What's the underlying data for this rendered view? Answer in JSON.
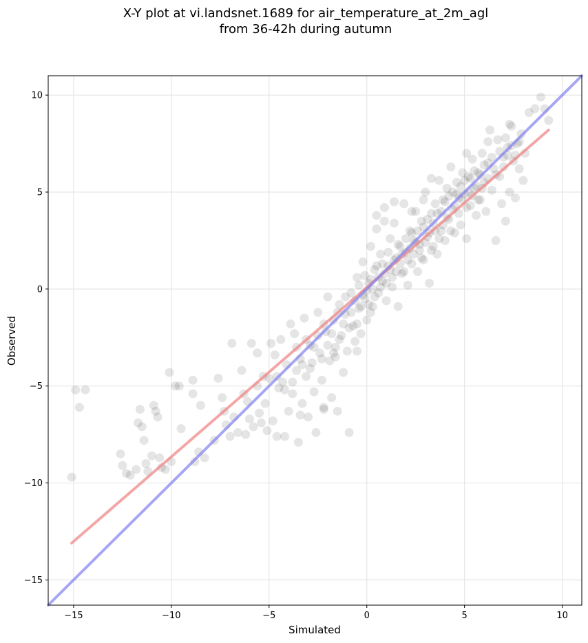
{
  "chart_data": {
    "type": "scatter",
    "title_line1": "X-Y plot at vi.landsnet.1689 for air_temperature_at_2m_agl",
    "title_line2": "from 36-42h during autumn",
    "xlabel": "Simulated",
    "ylabel": "Observed",
    "xlim": [
      -16.3,
      11.0
    ],
    "ylim": [
      -16.3,
      11.0
    ],
    "xticks": [
      -15,
      -10,
      -5,
      0,
      5,
      10
    ],
    "yticks": [
      -15,
      -10,
      -5,
      0,
      5,
      10
    ],
    "xtick_labels": [
      "−15",
      "−10",
      "−5",
      "0",
      "5",
      "10"
    ],
    "ytick_labels": [
      "−15",
      "−10",
      "−5",
      "0",
      "5",
      "10"
    ],
    "grid": true,
    "marker_color": "#000000",
    "points": [
      [
        -15.1,
        -9.7
      ],
      [
        -14.9,
        -5.2
      ],
      [
        -14.4,
        -5.2
      ],
      [
        -14.7,
        -6.1
      ],
      [
        -12.6,
        -8.5
      ],
      [
        -12.5,
        -9.1
      ],
      [
        -12.3,
        -9.5
      ],
      [
        -12.1,
        -9.6
      ],
      [
        -11.8,
        -9.3
      ],
      [
        -11.7,
        -6.9
      ],
      [
        -11.6,
        -6.2
      ],
      [
        -11.5,
        -7.1
      ],
      [
        -11.4,
        -7.8
      ],
      [
        -11.3,
        -9.0
      ],
      [
        -11.2,
        -9.4
      ],
      [
        -11.0,
        -8.6
      ],
      [
        -10.9,
        -6.0
      ],
      [
        -10.8,
        -6.3
      ],
      [
        -10.7,
        -6.6
      ],
      [
        -10.6,
        -8.7
      ],
      [
        -10.5,
        -9.2
      ],
      [
        -10.3,
        -9.3
      ],
      [
        -10.1,
        -4.3
      ],
      [
        -10.0,
        -8.9
      ],
      [
        -9.8,
        -5.0
      ],
      [
        -9.6,
        -5.0
      ],
      [
        -9.5,
        -7.2
      ],
      [
        -8.9,
        -4.7
      ],
      [
        -8.9,
        -5.4
      ],
      [
        -8.8,
        -8.9
      ],
      [
        -8.6,
        -8.4
      ],
      [
        -8.5,
        -6.0
      ],
      [
        -8.3,
        -8.7
      ],
      [
        -7.8,
        -7.8
      ],
      [
        -7.6,
        -4.6
      ],
      [
        -7.4,
        -5.6
      ],
      [
        -7.3,
        -6.3
      ],
      [
        -7.2,
        -7.0
      ],
      [
        -7.0,
        -7.6
      ],
      [
        -6.9,
        -2.8
      ],
      [
        -6.8,
        -6.6
      ],
      [
        -6.6,
        -7.4
      ],
      [
        -6.4,
        -4.2
      ],
      [
        -6.3,
        -5.4
      ],
      [
        -6.2,
        -7.5
      ],
      [
        -6.0,
        -6.7
      ],
      [
        -5.9,
        -2.8
      ],
      [
        -5.8,
        -7.1
      ],
      [
        -5.6,
        -3.3
      ],
      [
        -5.5,
        -6.4
      ],
      [
        -5.3,
        -4.5
      ],
      [
        -5.2,
        -5.9
      ],
      [
        -5.1,
        -7.3
      ],
      [
        -5.0,
        -4.6
      ],
      [
        -4.9,
        -2.8
      ],
      [
        -4.8,
        -6.8
      ],
      [
        -4.7,
        -3.4
      ],
      [
        -4.6,
        -7.6
      ],
      [
        -4.5,
        -5.1
      ],
      [
        -4.4,
        -2.6
      ],
      [
        -4.3,
        -4.8
      ],
      [
        -4.2,
        -7.6
      ],
      [
        -4.1,
        -3.9
      ],
      [
        -4.0,
        -6.3
      ],
      [
        -3.9,
        -1.8
      ],
      [
        -3.8,
        -5.4
      ],
      [
        -3.7,
        -2.3
      ],
      [
        -3.6,
        -4.2
      ],
      [
        -3.5,
        -7.9
      ],
      [
        -3.4,
        -3.6
      ],
      [
        -3.3,
        -5.9
      ],
      [
        -3.2,
        -1.5
      ],
      [
        -3.1,
        -4.5
      ],
      [
        -3.0,
        -6.6
      ],
      [
        -2.9,
        -2.9
      ],
      [
        -2.8,
        -3.8
      ],
      [
        -2.7,
        -5.3
      ],
      [
        -2.6,
        -7.4
      ],
      [
        -2.5,
        -1.2
      ],
      [
        -2.4,
        -3.3
      ],
      [
        -2.3,
        -4.7
      ],
      [
        -2.2,
        -6.2
      ],
      [
        -2.1,
        -2.2
      ],
      [
        -2.0,
        -0.4
      ],
      [
        -1.9,
        -3.7
      ],
      [
        -1.8,
        -5.6
      ],
      [
        -1.7,
        -1.6
      ],
      [
        -1.6,
        -3.0
      ],
      [
        -1.5,
        -6.3
      ],
      [
        -1.4,
        -0.8
      ],
      [
        -1.3,
        -2.4
      ],
      [
        -1.2,
        -4.3
      ],
      [
        -1.1,
        -1.3
      ],
      [
        -1.0,
        -3.2
      ],
      [
        -0.9,
        -7.4
      ],
      [
        -0.8,
        -0.2
      ],
      [
        -0.7,
        -1.9
      ],
      [
        -0.6,
        -2.7
      ],
      [
        -0.5,
        0.6
      ],
      [
        -0.4,
        -1.0
      ],
      [
        -0.3,
        -2.3
      ],
      [
        -0.2,
        1.4
      ],
      [
        -0.1,
        -0.5
      ],
      [
        0.0,
        -1.6
      ],
      [
        0.1,
        0.3
      ],
      [
        0.2,
        2.2
      ],
      [
        0.3,
        -0.9
      ],
      [
        0.4,
        1.0
      ],
      [
        0.5,
        3.1
      ],
      [
        0.6,
        -0.2
      ],
      [
        0.7,
        1.8
      ],
      [
        0.8,
        0.4
      ],
      [
        0.9,
        4.2
      ],
      [
        1.0,
        -0.6
      ],
      [
        1.1,
        1.2
      ],
      [
        1.2,
        2.6
      ],
      [
        1.3,
        0.1
      ],
      [
        1.4,
        3.4
      ],
      [
        1.5,
        1.6
      ],
      [
        1.6,
        -0.9
      ],
      [
        1.7,
        2.2
      ],
      [
        1.8,
        0.8
      ],
      [
        1.9,
        4.4
      ],
      [
        2.0,
        1.9
      ],
      [
        2.1,
        0.2
      ],
      [
        2.2,
        3.0
      ],
      [
        2.3,
        1.3
      ],
      [
        2.4,
        2.5
      ],
      [
        2.5,
        4.0
      ],
      [
        2.6,
        0.9
      ],
      [
        2.7,
        2.0
      ],
      [
        2.8,
        3.5
      ],
      [
        2.9,
        1.5
      ],
      [
        3.0,
        5.0
      ],
      [
        3.1,
        2.7
      ],
      [
        3.2,
        0.3
      ],
      [
        3.3,
        3.9
      ],
      [
        3.4,
        2.2
      ],
      [
        3.5,
        4.4
      ],
      [
        3.6,
        1.8
      ],
      [
        3.7,
        5.6
      ],
      [
        3.8,
        3.0
      ],
      [
        3.9,
        4.6
      ],
      [
        4.0,
        2.5
      ],
      [
        4.1,
        5.2
      ],
      [
        4.2,
        3.6
      ],
      [
        4.3,
        6.3
      ],
      [
        4.4,
        4.1
      ],
      [
        4.5,
        2.9
      ],
      [
        4.6,
        5.5
      ],
      [
        4.7,
        4.7
      ],
      [
        4.8,
        3.3
      ],
      [
        4.9,
        6.0
      ],
      [
        5.0,
        4.9
      ],
      [
        5.1,
        2.6
      ],
      [
        5.2,
        5.8
      ],
      [
        5.3,
        4.3
      ],
      [
        5.4,
        6.7
      ],
      [
        5.5,
        5.2
      ],
      [
        5.6,
        3.8
      ],
      [
        5.7,
        6.0
      ],
      [
        5.8,
        4.6
      ],
      [
        5.9,
        7.0
      ],
      [
        6.0,
        5.5
      ],
      [
        6.1,
        4.0
      ],
      [
        6.2,
        6.5
      ],
      [
        6.3,
        8.2
      ],
      [
        6.4,
        5.1
      ],
      [
        6.5,
        6.2
      ],
      [
        6.6,
        2.5
      ],
      [
        6.7,
        7.7
      ],
      [
        6.8,
        5.8
      ],
      [
        6.9,
        4.4
      ],
      [
        7.0,
        6.8
      ],
      [
        7.1,
        3.5
      ],
      [
        7.2,
        7.3
      ],
      [
        7.3,
        5.0
      ],
      [
        7.4,
        8.4
      ],
      [
        7.5,
        6.6
      ],
      [
        7.6,
        4.7
      ],
      [
        7.7,
        7.5
      ],
      [
        7.8,
        6.2
      ],
      [
        7.9,
        8.0
      ],
      [
        8.0,
        5.6
      ],
      [
        8.3,
        9.1
      ],
      [
        8.6,
        9.3
      ],
      [
        8.9,
        9.9
      ],
      [
        9.1,
        9.3
      ],
      [
        9.3,
        8.7
      ],
      [
        -4.6,
        -4.5
      ],
      [
        -4.2,
        -5.2
      ],
      [
        -3.8,
        -4.8
      ],
      [
        -3.6,
        -3.0
      ],
      [
        -3.3,
        -3.9
      ],
      [
        -3.1,
        -2.6
      ],
      [
        -2.9,
        -4.1
      ],
      [
        -2.7,
        -3.0
      ],
      [
        -2.5,
        -2.4
      ],
      [
        -2.3,
        -3.6
      ],
      [
        -2.2,
        -1.8
      ],
      [
        -2.0,
        -2.9
      ],
      [
        -1.8,
        -2.3
      ],
      [
        -1.7,
        -3.3
      ],
      [
        -1.5,
        -1.2
      ],
      [
        -1.4,
        -2.6
      ],
      [
        -1.2,
        -1.8
      ],
      [
        -1.1,
        -0.4
      ],
      [
        -0.9,
        -2.0
      ],
      [
        -0.8,
        -1.2
      ],
      [
        -0.6,
        -0.6
      ],
      [
        -0.5,
        -1.8
      ],
      [
        -0.4,
        0.2
      ],
      [
        -0.3,
        -0.9
      ],
      [
        -0.2,
        -0.3
      ],
      [
        -0.1,
        0.7
      ],
      [
        0.0,
        -0.1
      ],
      [
        0.1,
        -0.8
      ],
      [
        0.2,
        0.5
      ],
      [
        0.3,
        0.0
      ],
      [
        0.4,
        -0.4
      ],
      [
        0.5,
        1.2
      ],
      [
        0.6,
        0.6
      ],
      [
        0.7,
        0.1
      ],
      [
        0.8,
        1.3
      ],
      [
        0.9,
        0.8
      ],
      [
        1.0,
        0.3
      ],
      [
        1.1,
        1.9
      ],
      [
        1.2,
        1.0
      ],
      [
        1.3,
        0.6
      ],
      [
        1.4,
        1.5
      ],
      [
        1.5,
        0.9
      ],
      [
        1.6,
        2.3
      ],
      [
        1.7,
        1.3
      ],
      [
        1.8,
        1.8
      ],
      [
        1.9,
        0.9
      ],
      [
        2.0,
        2.6
      ],
      [
        2.1,
        1.5
      ],
      [
        2.2,
        2.1
      ],
      [
        2.3,
        2.9
      ],
      [
        2.4,
        1.8
      ],
      [
        2.5,
        2.4
      ],
      [
        2.6,
        3.0
      ],
      [
        2.7,
        2.3
      ],
      [
        2.8,
        1.6
      ],
      [
        2.9,
        3.2
      ],
      [
        3.0,
        2.4
      ],
      [
        3.1,
        3.6
      ],
      [
        3.2,
        2.9
      ],
      [
        3.3,
        2.0
      ],
      [
        3.4,
        3.4
      ],
      [
        3.5,
        3.0
      ],
      [
        3.6,
        3.9
      ],
      [
        3.7,
        2.6
      ],
      [
        3.8,
        4.0
      ],
      [
        3.9,
        3.3
      ],
      [
        4.0,
        4.5
      ],
      [
        4.1,
        3.7
      ],
      [
        4.2,
        4.8
      ],
      [
        4.3,
        3.0
      ],
      [
        4.4,
        5.0
      ],
      [
        4.5,
        4.3
      ],
      [
        4.6,
        4.9
      ],
      [
        4.7,
        3.9
      ],
      [
        4.8,
        5.3
      ],
      [
        4.9,
        4.6
      ],
      [
        5.0,
        5.6
      ],
      [
        5.1,
        4.2
      ],
      [
        5.2,
        5.0
      ],
      [
        5.3,
        5.7
      ],
      [
        5.4,
        4.8
      ],
      [
        5.5,
        6.1
      ],
      [
        5.6,
        5.3
      ],
      [
        5.7,
        4.6
      ],
      [
        5.8,
        5.9
      ],
      [
        5.9,
        5.2
      ],
      [
        6.0,
        6.4
      ],
      [
        6.2,
        5.7
      ],
      [
        6.4,
        6.8
      ],
      [
        6.6,
        5.9
      ],
      [
        6.8,
        7.1
      ],
      [
        7.0,
        6.3
      ],
      [
        7.2,
        6.9
      ],
      [
        7.4,
        7.4
      ],
      [
        7.6,
        6.9
      ],
      [
        7.8,
        7.6
      ],
      [
        -6.1,
        -5.8
      ],
      [
        -5.6,
        -5.0
      ],
      [
        -5.4,
        -6.9
      ],
      [
        -3.4,
        -6.5
      ],
      [
        -2.2,
        -6.1
      ],
      [
        -1.6,
        -3.5
      ],
      [
        -0.5,
        -3.2
      ],
      [
        0.2,
        -1.2
      ],
      [
        0.5,
        3.8
      ],
      [
        0.9,
        3.5
      ],
      [
        1.4,
        4.5
      ],
      [
        2.3,
        4.0
      ],
      [
        2.9,
        4.6
      ],
      [
        3.3,
        5.7
      ],
      [
        5.1,
        7.0
      ],
      [
        6.2,
        7.6
      ],
      [
        7.3,
        8.5
      ],
      [
        7.1,
        7.8
      ],
      [
        8.1,
        7.0
      ]
    ],
    "series": [
      {
        "name": "",
        "type": "regression",
        "color": "#f08080",
        "x": [
          -15.1,
          9.3
        ],
        "y": [
          -13.1,
          8.2
        ]
      },
      {
        "name": "",
        "type": "identity",
        "color": "#8080f0",
        "x": [
          -16.3,
          11.0
        ],
        "y": [
          -16.3,
          11.0
        ]
      }
    ]
  }
}
